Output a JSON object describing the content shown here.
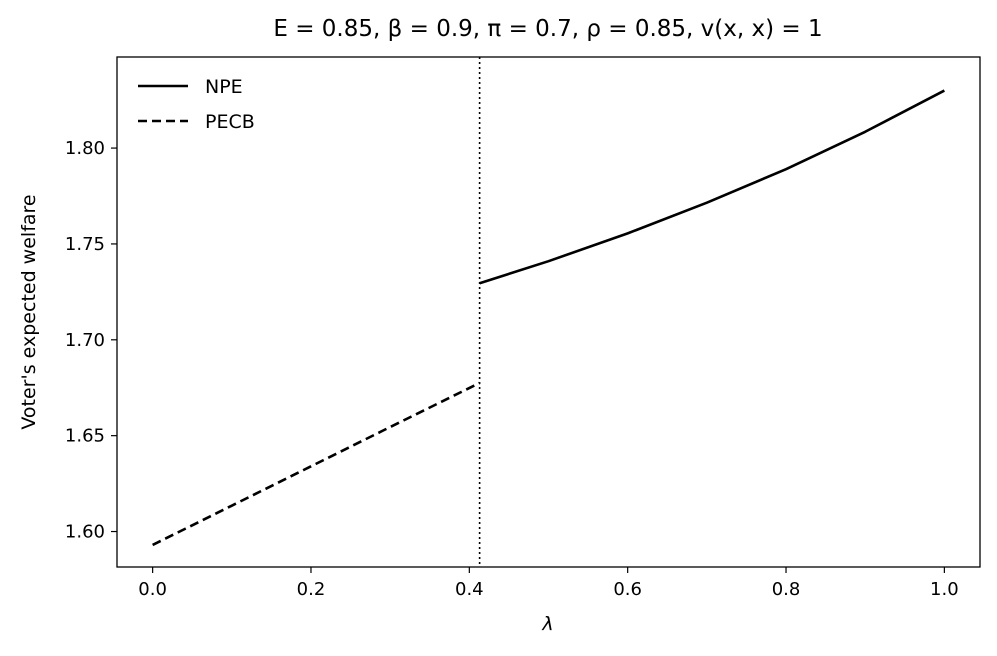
{
  "chart_data": {
    "type": "line",
    "title": "E = 0.85, β = 0.9, π = 0.7, ρ = 0.85, v(x, x) = 1",
    "xlabel": "λ",
    "ylabel": "Voter's expected welfare",
    "xlim": [
      -0.045,
      1.045
    ],
    "ylim": [
      1.5815,
      1.8475
    ],
    "xticks": [
      0.0,
      0.2,
      0.4,
      0.6,
      0.8,
      1.0
    ],
    "xtick_labels": [
      "0.0",
      "0.2",
      "0.4",
      "0.6",
      "0.8",
      "1.0"
    ],
    "yticks": [
      1.6,
      1.65,
      1.7,
      1.75,
      1.8
    ],
    "ytick_labels": [
      "1.60",
      "1.65",
      "1.70",
      "1.75",
      "1.80"
    ],
    "grid": false,
    "legend_position": "top-left",
    "vline": {
      "x": 0.413,
      "style": "dotted"
    },
    "series": [
      {
        "name": "NPE",
        "style": "solid",
        "color": "#000000",
        "x": [
          0.413,
          0.5,
          0.6,
          0.7,
          0.8,
          0.9,
          1.0
        ],
        "y": [
          1.7295,
          1.741,
          1.7555,
          1.7715,
          1.789,
          1.8085,
          1.83
        ]
      },
      {
        "name": "PECB",
        "style": "dashed",
        "color": "#000000",
        "x": [
          0.0,
          0.1,
          0.2,
          0.3,
          0.413
        ],
        "y": [
          1.593,
          1.6135,
          1.634,
          1.6545,
          1.6775
        ]
      }
    ]
  }
}
